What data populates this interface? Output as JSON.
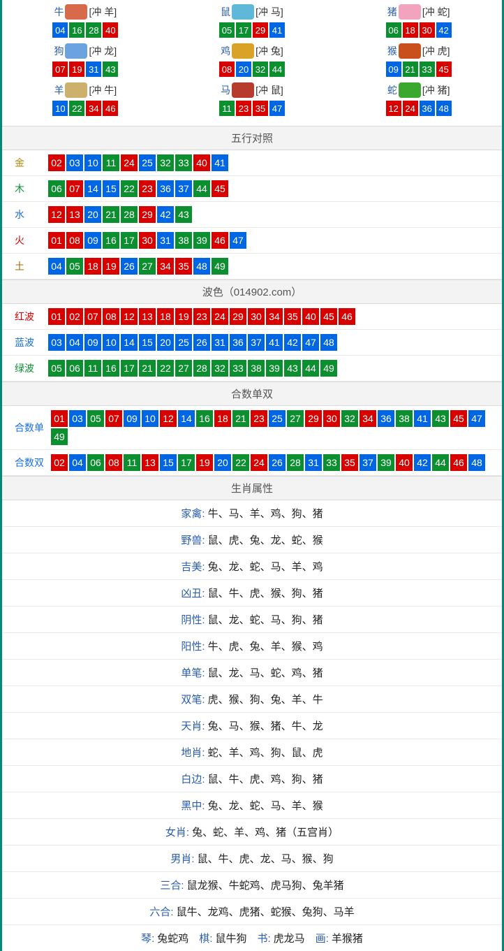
{
  "colors": {
    "frame": "#008b72",
    "section_bg": "#f3f3f3",
    "border": "#d9d9d9",
    "row_border": "#e9e9e9",
    "num_red": "#d90000",
    "num_blue": "#0066e4",
    "num_green": "#0b8f2f",
    "link_blue": "#2a5db0"
  },
  "zodiac_icon_colors": {
    "牛": "#d66a4b",
    "鼠": "#5fb8d8",
    "猪": "#f2a3bd",
    "狗": "#6aa3e0",
    "鸡": "#d8a326",
    "猴": "#c94f1b",
    "羊": "#cdb06b",
    "马": "#b83c2e",
    "蛇": "#3aa82f"
  },
  "number_colors": {
    "01": "red",
    "02": "red",
    "07": "red",
    "08": "red",
    "12": "red",
    "13": "red",
    "18": "red",
    "19": "red",
    "23": "red",
    "24": "red",
    "29": "red",
    "30": "red",
    "34": "red",
    "35": "red",
    "40": "red",
    "45": "red",
    "46": "red",
    "03": "blue",
    "04": "blue",
    "09": "blue",
    "10": "blue",
    "14": "blue",
    "15": "blue",
    "20": "blue",
    "25": "blue",
    "26": "blue",
    "31": "blue",
    "36": "blue",
    "37": "blue",
    "41": "blue",
    "42": "blue",
    "47": "blue",
    "48": "blue",
    "05": "green",
    "06": "green",
    "11": "green",
    "16": "green",
    "17": "green",
    "21": "green",
    "22": "green",
    "27": "green",
    "28": "green",
    "32": "green",
    "33": "green",
    "38": "green",
    "39": "green",
    "43": "green",
    "44": "green",
    "49": "green"
  },
  "zodiac": [
    {
      "name": "牛",
      "clash": "[冲 羊]",
      "nums": [
        "04",
        "16",
        "28",
        "40"
      ]
    },
    {
      "name": "鼠",
      "clash": "[冲 马]",
      "nums": [
        "05",
        "17",
        "29",
        "41"
      ]
    },
    {
      "name": "猪",
      "clash": "[冲 蛇]",
      "nums": [
        "06",
        "18",
        "30",
        "42"
      ]
    },
    {
      "name": "狗",
      "clash": "[冲 龙]",
      "nums": [
        "07",
        "19",
        "31",
        "43"
      ]
    },
    {
      "name": "鸡",
      "clash": "[冲 兔]",
      "nums": [
        "08",
        "20",
        "32",
        "44"
      ]
    },
    {
      "name": "猴",
      "clash": "[冲 虎]",
      "nums": [
        "09",
        "21",
        "33",
        "45"
      ]
    },
    {
      "name": "羊",
      "clash": "[冲 牛]",
      "nums": [
        "10",
        "22",
        "34",
        "46"
      ]
    },
    {
      "name": "马",
      "clash": "[冲 鼠]",
      "nums": [
        "11",
        "23",
        "35",
        "47"
      ]
    },
    {
      "name": "蛇",
      "clash": "[冲 猪]",
      "nums": [
        "12",
        "24",
        "36",
        "48"
      ]
    }
  ],
  "wuxing_title": "五行对照",
  "wuxing": [
    {
      "label": "金",
      "cls": "lbl-gold",
      "nums": [
        "02",
        "03",
        "10",
        "11",
        "24",
        "25",
        "32",
        "33",
        "40",
        "41"
      ]
    },
    {
      "label": "木",
      "cls": "lbl-wood",
      "nums": [
        "06",
        "07",
        "14",
        "15",
        "22",
        "23",
        "36",
        "37",
        "44",
        "45"
      ]
    },
    {
      "label": "水",
      "cls": "lbl-water",
      "nums": [
        "12",
        "13",
        "20",
        "21",
        "28",
        "29",
        "42",
        "43"
      ]
    },
    {
      "label": "火",
      "cls": "lbl-fire",
      "nums": [
        "01",
        "08",
        "09",
        "16",
        "17",
        "30",
        "31",
        "38",
        "39",
        "46",
        "47"
      ]
    },
    {
      "label": "土",
      "cls": "lbl-earth",
      "nums": [
        "04",
        "05",
        "18",
        "19",
        "26",
        "27",
        "34",
        "35",
        "48",
        "49"
      ]
    }
  ],
  "wave_title": "波色（014902.com）",
  "waves": [
    {
      "label": "红波",
      "cls": "lbl-redwave",
      "nums": [
        "01",
        "02",
        "07",
        "08",
        "12",
        "13",
        "18",
        "19",
        "23",
        "24",
        "29",
        "30",
        "34",
        "35",
        "40",
        "45",
        "46"
      ]
    },
    {
      "label": "蓝波",
      "cls": "lbl-bluewave",
      "nums": [
        "03",
        "04",
        "09",
        "10",
        "14",
        "15",
        "20",
        "25",
        "26",
        "31",
        "36",
        "37",
        "41",
        "42",
        "47",
        "48"
      ]
    },
    {
      "label": "绿波",
      "cls": "lbl-greenwave",
      "nums": [
        "05",
        "06",
        "11",
        "16",
        "17",
        "21",
        "22",
        "27",
        "28",
        "32",
        "33",
        "38",
        "39",
        "43",
        "44",
        "49"
      ]
    }
  ],
  "heshu_title": "合数单双",
  "heshu": [
    {
      "label": "合数单",
      "cls": "lbl-bluewave",
      "nums": [
        "01",
        "03",
        "05",
        "07",
        "09",
        "10",
        "12",
        "14",
        "16",
        "18",
        "21",
        "23",
        "25",
        "27",
        "29",
        "30",
        "32",
        "34",
        "36",
        "38",
        "41",
        "43",
        "45",
        "47",
        "49"
      ]
    },
    {
      "label": "合数双",
      "cls": "lbl-bluewave",
      "nums": [
        "02",
        "04",
        "06",
        "08",
        "11",
        "13",
        "15",
        "17",
        "19",
        "20",
        "22",
        "24",
        "26",
        "28",
        "31",
        "33",
        "35",
        "37",
        "39",
        "40",
        "42",
        "44",
        "46",
        "48"
      ]
    }
  ],
  "attr_title": "生肖属性",
  "attrs": [
    {
      "label": "家禽:",
      "val": "牛、马、羊、鸡、狗、猪"
    },
    {
      "label": "野兽:",
      "val": "鼠、虎、兔、龙、蛇、猴"
    },
    {
      "label": "吉美:",
      "val": "兔、龙、蛇、马、羊、鸡"
    },
    {
      "label": "凶丑:",
      "val": "鼠、牛、虎、猴、狗、猪"
    },
    {
      "label": "阴性:",
      "val": "鼠、龙、蛇、马、狗、猪"
    },
    {
      "label": "阳性:",
      "val": "牛、虎、兔、羊、猴、鸡"
    },
    {
      "label": "单笔:",
      "val": "鼠、龙、马、蛇、鸡、猪"
    },
    {
      "label": "双笔:",
      "val": "虎、猴、狗、兔、羊、牛"
    },
    {
      "label": "天肖:",
      "val": "兔、马、猴、猪、牛、龙"
    },
    {
      "label": "地肖:",
      "val": "蛇、羊、鸡、狗、鼠、虎"
    },
    {
      "label": "白边:",
      "val": "鼠、牛、虎、鸡、狗、猪"
    },
    {
      "label": "黑中:",
      "val": "兔、龙、蛇、马、羊、猴"
    },
    {
      "label": "女肖:",
      "val": "兔、蛇、羊、鸡、猪（五宫肖）"
    },
    {
      "label": "男肖:",
      "val": "鼠、牛、虎、龙、马、猴、狗"
    },
    {
      "label": "三合:",
      "val": "鼠龙猴、牛蛇鸡、虎马狗、兔羊猪"
    },
    {
      "label": "六合:",
      "val": "鼠牛、龙鸡、虎猪、蛇猴、兔狗、马羊"
    }
  ],
  "footer_parts": [
    {
      "k": "琴:",
      "v": "兔蛇鸡"
    },
    {
      "k": "棋:",
      "v": "鼠牛狗"
    },
    {
      "k": "书:",
      "v": "虎龙马"
    },
    {
      "k": "画:",
      "v": "羊猴猪"
    }
  ]
}
